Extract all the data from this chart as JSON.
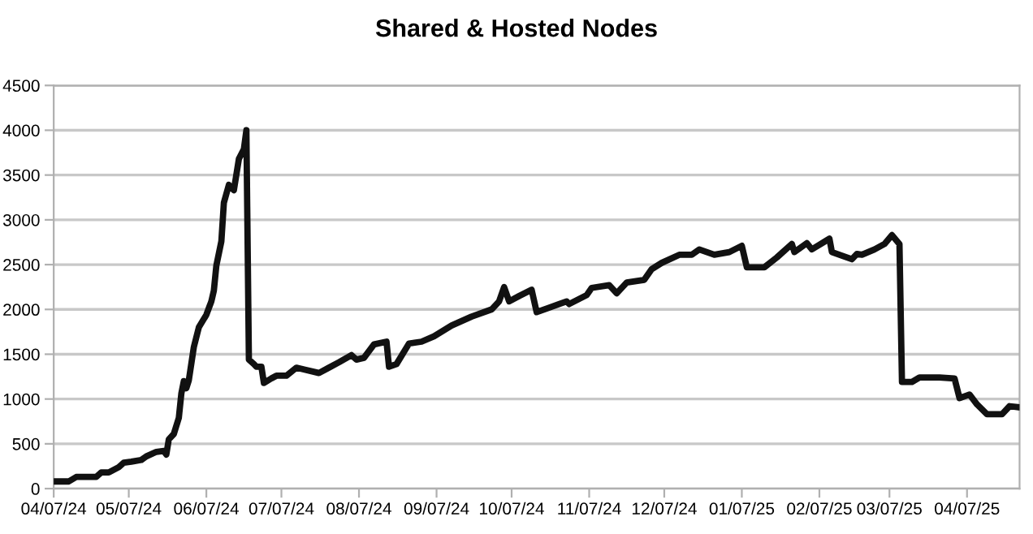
{
  "chart_data": {
    "type": "line",
    "title": "Shared & Hosted Nodes",
    "x": [
      "2024-04-07",
      "2024-04-13",
      "2024-04-16",
      "2024-04-24",
      "2024-04-26",
      "2024-04-29",
      "2024-05-03",
      "2024-05-05",
      "2024-05-08",
      "2024-05-12",
      "2024-05-14",
      "2024-05-18",
      "2024-05-21",
      "2024-05-22",
      "2024-05-23",
      "2024-05-25",
      "2024-05-27",
      "2024-05-28",
      "2024-05-29",
      "2024-05-30",
      "2024-05-31",
      "2024-06-02",
      "2024-06-04",
      "2024-06-07",
      "2024-06-09",
      "2024-06-10",
      "2024-06-11",
      "2024-06-13",
      "2024-06-14",
      "2024-06-16",
      "2024-06-18",
      "2024-06-20",
      "2024-06-22",
      "2024-06-23",
      "2024-06-24",
      "2024-06-26",
      "2024-06-27",
      "2024-06-29",
      "2024-06-30",
      "2024-07-03",
      "2024-07-05",
      "2024-07-09",
      "2024-07-13",
      "2024-07-16",
      "2024-07-22",
      "2024-07-26",
      "2024-07-30",
      "2024-08-04",
      "2024-08-06",
      "2024-08-09",
      "2024-08-13",
      "2024-08-18",
      "2024-08-19",
      "2024-08-22",
      "2024-08-27",
      "2024-09-01",
      "2024-09-06",
      "2024-09-13",
      "2024-09-21",
      "2024-09-29",
      "2024-10-02",
      "2024-10-04",
      "2024-10-06",
      "2024-10-10",
      "2024-10-15",
      "2024-10-17",
      "2024-10-22",
      "2024-10-26",
      "2024-10-29",
      "2024-10-30",
      "2024-11-06",
      "2024-11-08",
      "2024-11-15",
      "2024-11-18",
      "2024-11-22",
      "2024-11-29",
      "2024-12-02",
      "2024-12-06",
      "2024-12-13",
      "2024-12-18",
      "2024-12-21",
      "2024-12-27",
      "2025-01-02",
      "2025-01-07",
      "2025-01-09",
      "2025-01-16",
      "2025-01-21",
      "2025-01-27",
      "2025-01-28",
      "2025-02-02",
      "2025-02-04",
      "2025-02-11",
      "2025-02-12",
      "2025-02-17",
      "2025-02-20",
      "2025-02-22",
      "2025-02-24",
      "2025-03-01",
      "2025-03-05",
      "2025-03-08",
      "2025-03-11",
      "2025-03-12",
      "2025-03-16",
      "2025-03-19",
      "2025-03-27",
      "2025-04-02",
      "2025-04-04",
      "2025-04-08",
      "2025-04-11",
      "2025-04-15",
      "2025-04-21",
      "2025-04-24",
      "2025-04-27"
    ],
    "series": [
      {
        "color": "#111111",
        "values": [
          80,
          80,
          130,
          130,
          180,
          180,
          240,
          290,
          300,
          320,
          360,
          410,
          420,
          380,
          550,
          610,
          790,
          1060,
          1200,
          1120,
          1210,
          1580,
          1800,
          1940,
          2090,
          2210,
          2490,
          2760,
          3190,
          3390,
          3330,
          3680,
          3790,
          4000,
          1440,
          1390,
          1360,
          1360,
          1180,
          1230,
          1260,
          1260,
          1350,
          1330,
          1290,
          1350,
          1410,
          1490,
          1440,
          1460,
          1610,
          1640,
          1360,
          1390,
          1620,
          1640,
          1700,
          1820,
          1920,
          2000,
          2090,
          2250,
          2090,
          2150,
          2220,
          1970,
          2020,
          2060,
          2090,
          2060,
          2160,
          2240,
          2270,
          2180,
          2300,
          2330,
          2450,
          2520,
          2610,
          2610,
          2670,
          2610,
          2640,
          2710,
          2470,
          2470,
          2580,
          2730,
          2640,
          2740,
          2670,
          2790,
          2640,
          2590,
          2560,
          2620,
          2610,
          2670,
          2730,
          2830,
          2730,
          1190,
          1190,
          1240,
          1240,
          1230,
          1010,
          1050,
          940,
          830,
          830,
          920,
          910
        ]
      }
    ],
    "xlim": [
      "2024-04-07",
      "2025-04-28"
    ],
    "xticks": [
      {
        "value": "2024-04-07",
        "label": "04/07/24"
      },
      {
        "value": "2024-05-07",
        "label": "05/07/24"
      },
      {
        "value": "2024-06-07",
        "label": "06/07/24"
      },
      {
        "value": "2024-07-07",
        "label": "07/07/24"
      },
      {
        "value": "2024-08-07",
        "label": "08/07/24"
      },
      {
        "value": "2024-09-07",
        "label": "09/07/24"
      },
      {
        "value": "2024-10-07",
        "label": "10/07/24"
      },
      {
        "value": "2024-11-07",
        "label": "11/07/24"
      },
      {
        "value": "2024-12-07",
        "label": "12/07/24"
      },
      {
        "value": "2025-01-07",
        "label": "01/07/25"
      },
      {
        "value": "2025-02-07",
        "label": "02/07/25"
      },
      {
        "value": "2025-03-07",
        "label": "03/07/25"
      },
      {
        "value": "2025-04-07",
        "label": "04/07/25"
      }
    ],
    "ylim": [
      0,
      4500
    ],
    "yticks": [
      0,
      500,
      1000,
      1500,
      2000,
      2500,
      3000,
      3500,
      4000,
      4500
    ],
    "grid": "y",
    "legend": false,
    "marker": "none",
    "line_style": "solid"
  }
}
